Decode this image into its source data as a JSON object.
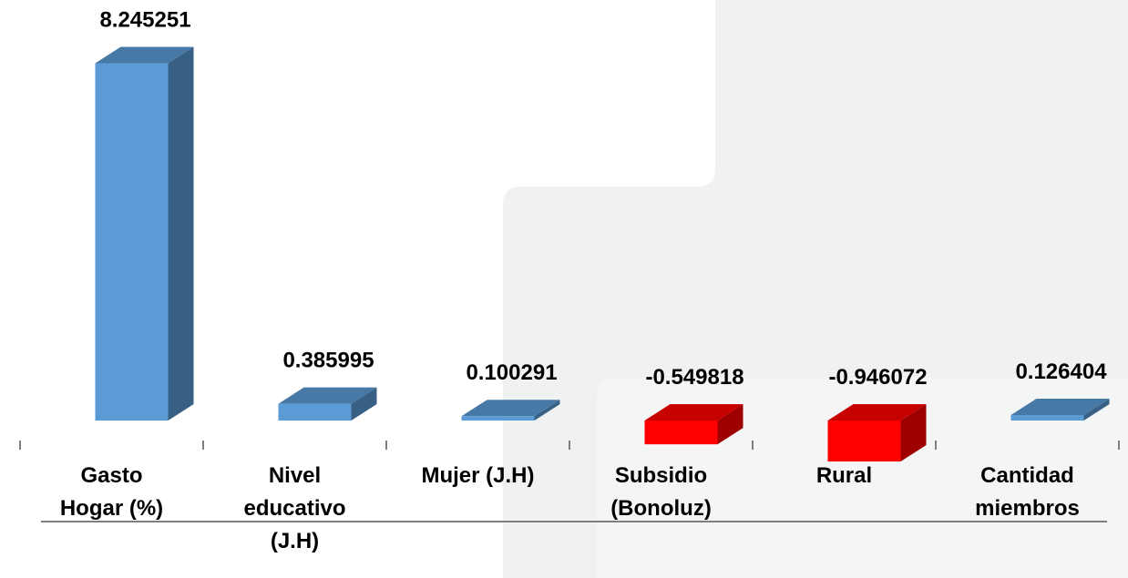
{
  "chart_data": {
    "type": "bar3d",
    "categories": [
      "Gasto Hogar (%)",
      "Nivel educativo (J.H)",
      "Mujer (J.H)",
      "Subsidio (Bonoluz)",
      "Rural",
      "Cantidad miembros"
    ],
    "values": [
      8.245251,
      0.385995,
      0.100291,
      -0.549818,
      -0.946072,
      0.126404
    ],
    "color": "#5b9bd5",
    "negative_color": "#ff0000"
  }
}
